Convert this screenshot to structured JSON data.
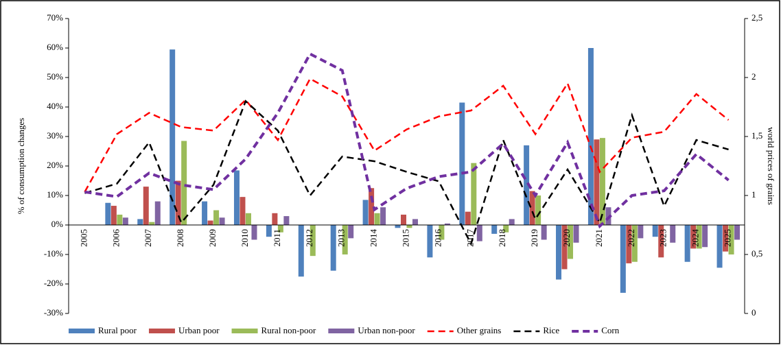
{
  "chart_data": {
    "type": "bar-line",
    "y_label": "% of consumption changes",
    "y2_label": "world prices of grains",
    "categories": [
      "2005",
      "2006",
      "2007",
      "2008",
      "2009",
      "2010",
      "2011",
      "2012",
      "2013",
      "2014",
      "2015",
      "2016",
      "2017",
      "2018",
      "2019",
      "2020",
      "2021",
      "2022",
      "2023",
      "2024",
      "2025"
    ],
    "ylim": [
      -30,
      70
    ],
    "yticks": [
      {
        "value": -30,
        "label": "-30%"
      },
      {
        "value": -20,
        "label": "-20%"
      },
      {
        "value": -10,
        "label": "-10%"
      },
      {
        "value": 0,
        "label": "0%"
      },
      {
        "value": 10,
        "label": "10%"
      },
      {
        "value": 20,
        "label": "20%"
      },
      {
        "value": 30,
        "label": "30%"
      },
      {
        "value": 40,
        "label": "40%"
      },
      {
        "value": 50,
        "label": "50%"
      },
      {
        "value": 60,
        "label": "60%"
      },
      {
        "value": 70,
        "label": "70%"
      }
    ],
    "y2lim": [
      0,
      2.5
    ],
    "y2ticks": [
      0,
      {
        "value": 0.5,
        "label": "0,5"
      },
      1,
      {
        "value": 1.5,
        "label": "1,5"
      },
      2,
      {
        "value": 2.5,
        "label": "2,5"
      }
    ],
    "series": [
      {
        "name": "Rural poor",
        "kind": "bar",
        "color": "#4f81bd",
        "values": [
          0,
          7.5,
          2,
          59.5,
          8,
          18.5,
          -4,
          -17.5,
          -15.5,
          8.5,
          -1,
          -11,
          41.5,
          -3,
          27,
          -18.5,
          60,
          -23,
          -4,
          -12.5,
          -14.5
        ]
      },
      {
        "name": "Urban poor",
        "kind": "bar",
        "color": "#c0504d",
        "values": [
          0,
          6.5,
          13,
          15,
          1.5,
          9.5,
          4,
          0,
          0,
          12.5,
          3.5,
          0,
          4.5,
          0,
          11.5,
          -15,
          29,
          -13,
          -11,
          -8,
          -9
        ]
      },
      {
        "name": "Rural non-poor",
        "kind": "bar",
        "color": "#9bbb59",
        "values": [
          0,
          3.5,
          1,
          28.5,
          5,
          4,
          -2.5,
          -10.5,
          -10,
          4,
          -1,
          -5,
          21,
          -2.5,
          10,
          -11.5,
          29.5,
          -12.5,
          0,
          -8,
          -10
        ]
      },
      {
        "name": "Urban non-poor",
        "kind": "bar",
        "color": "#8064a2",
        "values": [
          0,
          2.5,
          8,
          0,
          2.5,
          -5,
          3,
          0,
          -4.5,
          6,
          2,
          0.5,
          -5.5,
          2,
          -5,
          -6,
          6,
          -4.5,
          -6,
          -7.5,
          -5
        ]
      },
      {
        "name": "Other grains",
        "kind": "line",
        "axis": "y2",
        "color": "#ff0000",
        "values": [
          1.03,
          1.52,
          1.7,
          1.58,
          1.55,
          1.81,
          1.47,
          1.99,
          1.84,
          1.38,
          1.56,
          1.67,
          1.72,
          1.93,
          1.52,
          1.95,
          1.2,
          1.49,
          1.54,
          1.86,
          1.64
        ]
      },
      {
        "name": "Rice",
        "kind": "line",
        "axis": "y2",
        "color": "#000000",
        "values": [
          1.02,
          1.1,
          1.45,
          0.77,
          1.09,
          1.8,
          1.55,
          1.0,
          1.33,
          1.29,
          1.2,
          1.12,
          0.59,
          1.47,
          0.8,
          1.22,
          0.77,
          1.68,
          0.91,
          1.47,
          1.39
        ]
      },
      {
        "name": "Corn",
        "kind": "line",
        "axis": "y2",
        "color": "#7030a0",
        "values": [
          1.03,
          0.99,
          1.19,
          1.09,
          1.05,
          1.31,
          1.7,
          2.2,
          2.06,
          0.88,
          1.06,
          1.16,
          1.2,
          1.44,
          1.0,
          1.45,
          0.74,
          1.0,
          1.04,
          1.35,
          1.13
        ]
      }
    ]
  }
}
